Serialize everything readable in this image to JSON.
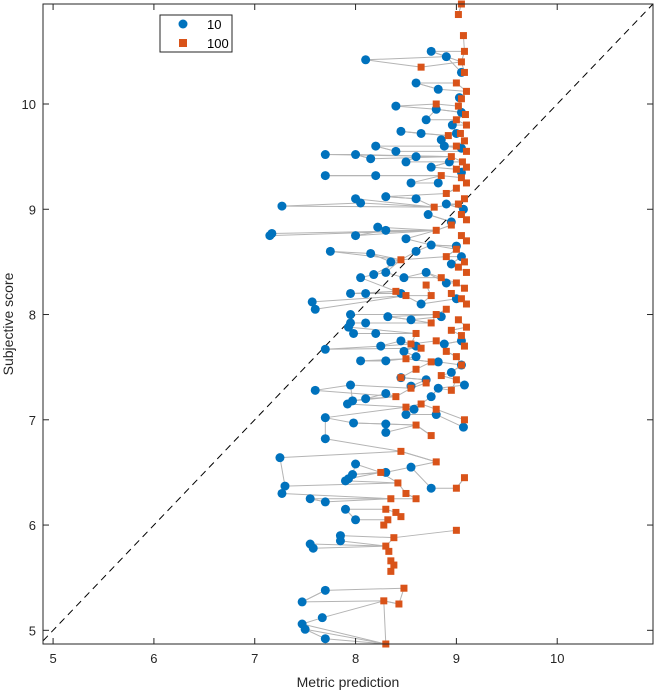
{
  "chart_data": {
    "type": "scatter",
    "xlabel": "Metric prediction",
    "ylabel": "Subjective score",
    "xlim": [
      4.9,
      10.95
    ],
    "ylim": [
      4.87,
      10.95
    ],
    "xticks": [
      5,
      6,
      7,
      8,
      9,
      10
    ],
    "yticks": [
      5,
      6,
      7,
      8,
      9,
      10
    ],
    "reference_line": "y = x (dashed)",
    "legend_position": "top-left",
    "colors": {
      "connector": "#b4b4b4",
      "axes": "#262626",
      "diagonal": "#000000"
    },
    "series": [
      {
        "name": "10",
        "marker": "circle",
        "color": "#0072BD",
        "points": [
          [
            8.1,
            10.42
          ],
          [
            8.75,
            10.5
          ],
          [
            8.9,
            10.45
          ],
          [
            9.05,
            10.3
          ],
          [
            8.6,
            10.2
          ],
          [
            8.82,
            10.14
          ],
          [
            9.03,
            10.06
          ],
          [
            8.4,
            9.98
          ],
          [
            8.8,
            9.95
          ],
          [
            9.05,
            9.92
          ],
          [
            8.7,
            9.85
          ],
          [
            8.96,
            9.8
          ],
          [
            8.45,
            9.74
          ],
          [
            8.65,
            9.72
          ],
          [
            9.0,
            9.72
          ],
          [
            8.85,
            9.66
          ],
          [
            8.2,
            9.6
          ],
          [
            8.4,
            9.55
          ],
          [
            8.6,
            9.5
          ],
          [
            8.88,
            9.6
          ],
          [
            9.05,
            9.58
          ],
          [
            7.7,
            9.52
          ],
          [
            8.0,
            9.52
          ],
          [
            8.15,
            9.48
          ],
          [
            8.5,
            9.45
          ],
          [
            8.75,
            9.4
          ],
          [
            8.93,
            9.45
          ],
          [
            9.05,
            9.35
          ],
          [
            7.7,
            9.32
          ],
          [
            8.2,
            9.32
          ],
          [
            8.55,
            9.25
          ],
          [
            8.82,
            9.25
          ],
          [
            8.0,
            9.1
          ],
          [
            8.3,
            9.12
          ],
          [
            8.6,
            9.1
          ],
          [
            8.9,
            9.05
          ],
          [
            9.07,
            9.0
          ],
          [
            7.27,
            9.03
          ],
          [
            8.05,
            9.06
          ],
          [
            8.72,
            8.95
          ],
          [
            8.95,
            8.88
          ],
          [
            7.15,
            8.75
          ],
          [
            7.17,
            8.77
          ],
          [
            8.22,
            8.83
          ],
          [
            8.3,
            8.8
          ],
          [
            8.0,
            8.75
          ],
          [
            8.5,
            8.72
          ],
          [
            8.75,
            8.66
          ],
          [
            9.0,
            8.65
          ],
          [
            8.15,
            8.58
          ],
          [
            8.6,
            8.6
          ],
          [
            7.75,
            8.6
          ],
          [
            9.05,
            8.55
          ],
          [
            8.35,
            8.5
          ],
          [
            8.95,
            8.48
          ],
          [
            8.05,
            8.35
          ],
          [
            8.18,
            8.38
          ],
          [
            8.3,
            8.4
          ],
          [
            8.48,
            8.35
          ],
          [
            8.7,
            8.4
          ],
          [
            8.9,
            8.3
          ],
          [
            7.95,
            8.2
          ],
          [
            8.1,
            8.2
          ],
          [
            8.45,
            8.2
          ],
          [
            8.65,
            8.1
          ],
          [
            9.0,
            8.15
          ],
          [
            7.57,
            8.12
          ],
          [
            7.6,
            8.05
          ],
          [
            7.95,
            8.0
          ],
          [
            8.32,
            7.98
          ],
          [
            8.55,
            7.95
          ],
          [
            8.85,
            7.98
          ],
          [
            7.95,
            7.92
          ],
          [
            8.1,
            7.92
          ],
          [
            7.93,
            7.88
          ],
          [
            7.98,
            7.82
          ],
          [
            8.2,
            7.82
          ],
          [
            8.45,
            7.75
          ],
          [
            8.6,
            7.7
          ],
          [
            8.88,
            7.72
          ],
          [
            9.05,
            7.75
          ],
          [
            7.7,
            7.67
          ],
          [
            8.25,
            7.7
          ],
          [
            8.48,
            7.65
          ],
          [
            8.05,
            7.56
          ],
          [
            8.3,
            7.56
          ],
          [
            8.6,
            7.6
          ],
          [
            8.82,
            7.55
          ],
          [
            9.05,
            7.52
          ],
          [
            8.45,
            7.4
          ],
          [
            8.7,
            7.38
          ],
          [
            8.95,
            7.45
          ],
          [
            7.95,
            7.33
          ],
          [
            8.55,
            7.32
          ],
          [
            8.82,
            7.3
          ],
          [
            9.08,
            7.33
          ],
          [
            7.6,
            7.28
          ],
          [
            8.3,
            7.25
          ],
          [
            8.75,
            7.22
          ],
          [
            7.97,
            7.18
          ],
          [
            8.1,
            7.2
          ],
          [
            7.92,
            7.15
          ],
          [
            8.58,
            7.1
          ],
          [
            8.8,
            7.05
          ],
          [
            7.7,
            7.02
          ],
          [
            8.5,
            7.05
          ],
          [
            7.98,
            6.97
          ],
          [
            8.3,
            6.96
          ],
          [
            9.07,
            6.93
          ],
          [
            7.7,
            6.82
          ],
          [
            8.3,
            6.88
          ],
          [
            7.25,
            6.64
          ],
          [
            8.0,
            6.58
          ],
          [
            8.55,
            6.55
          ],
          [
            7.97,
            6.48
          ],
          [
            7.93,
            6.44
          ],
          [
            7.9,
            6.42
          ],
          [
            8.3,
            6.5
          ],
          [
            8.75,
            6.35
          ],
          [
            7.3,
            6.37
          ],
          [
            7.27,
            6.3
          ],
          [
            7.55,
            6.25
          ],
          [
            7.7,
            6.22
          ],
          [
            7.9,
            6.15
          ],
          [
            8.0,
            6.05
          ],
          [
            7.85,
            5.9
          ],
          [
            7.85,
            5.85
          ],
          [
            7.55,
            5.82
          ],
          [
            7.58,
            5.78
          ],
          [
            7.7,
            5.38
          ],
          [
            7.47,
            5.27
          ],
          [
            7.67,
            5.12
          ],
          [
            7.47,
            5.06
          ],
          [
            7.5,
            5.01
          ],
          [
            7.7,
            4.92
          ]
        ]
      },
      {
        "name": "100",
        "marker": "square",
        "color": "#D95319",
        "points": [
          [
            9.05,
            10.95
          ],
          [
            9.02,
            10.85
          ],
          [
            9.07,
            10.65
          ],
          [
            9.08,
            10.5
          ],
          [
            9.05,
            10.4
          ],
          [
            8.65,
            10.35
          ],
          [
            9.08,
            10.3
          ],
          [
            9.0,
            10.2
          ],
          [
            9.1,
            10.12
          ],
          [
            9.05,
            10.05
          ],
          [
            8.8,
            10.0
          ],
          [
            9.02,
            9.98
          ],
          [
            9.09,
            9.9
          ],
          [
            9.0,
            9.85
          ],
          [
            9.1,
            9.8
          ],
          [
            9.04,
            9.72
          ],
          [
            8.92,
            9.7
          ],
          [
            9.08,
            9.65
          ],
          [
            9.0,
            9.6
          ],
          [
            9.1,
            9.55
          ],
          [
            8.95,
            9.5
          ],
          [
            9.06,
            9.45
          ],
          [
            9.1,
            9.4
          ],
          [
            9.0,
            9.38
          ],
          [
            8.85,
            9.32
          ],
          [
            9.05,
            9.3
          ],
          [
            9.1,
            9.25
          ],
          [
            9.0,
            9.2
          ],
          [
            8.9,
            9.15
          ],
          [
            9.08,
            9.1
          ],
          [
            9.02,
            9.05
          ],
          [
            8.78,
            9.02
          ],
          [
            9.05,
            8.95
          ],
          [
            9.1,
            8.9
          ],
          [
            8.95,
            8.85
          ],
          [
            8.8,
            8.8
          ],
          [
            9.05,
            8.75
          ],
          [
            9.1,
            8.7
          ],
          [
            9.0,
            8.62
          ],
          [
            8.9,
            8.55
          ],
          [
            9.08,
            8.5
          ],
          [
            8.45,
            8.52
          ],
          [
            9.02,
            8.45
          ],
          [
            9.1,
            8.4
          ],
          [
            8.85,
            8.35
          ],
          [
            9.0,
            8.3
          ],
          [
            8.7,
            8.28
          ],
          [
            9.08,
            8.25
          ],
          [
            8.4,
            8.22
          ],
          [
            8.95,
            8.2
          ],
          [
            8.75,
            8.18
          ],
          [
            9.05,
            8.15
          ],
          [
            8.5,
            8.18
          ],
          [
            9.1,
            8.1
          ],
          [
            8.9,
            8.05
          ],
          [
            8.8,
            8.0
          ],
          [
            9.02,
            7.95
          ],
          [
            8.75,
            7.92
          ],
          [
            9.1,
            7.88
          ],
          [
            8.95,
            7.85
          ],
          [
            8.6,
            7.82
          ],
          [
            9.05,
            7.8
          ],
          [
            8.8,
            7.75
          ],
          [
            8.55,
            7.72
          ],
          [
            9.08,
            7.7
          ],
          [
            8.65,
            7.68
          ],
          [
            8.9,
            7.65
          ],
          [
            9.0,
            7.6
          ],
          [
            8.5,
            7.58
          ],
          [
            8.75,
            7.55
          ],
          [
            9.05,
            7.52
          ],
          [
            8.6,
            7.48
          ],
          [
            8.85,
            7.42
          ],
          [
            8.45,
            7.4
          ],
          [
            9.0,
            7.38
          ],
          [
            8.7,
            7.35
          ],
          [
            8.55,
            7.3
          ],
          [
            8.95,
            7.28
          ],
          [
            8.4,
            7.22
          ],
          [
            8.65,
            7.15
          ],
          [
            8.8,
            7.1
          ],
          [
            8.5,
            7.12
          ],
          [
            9.08,
            7.0
          ],
          [
            8.6,
            6.95
          ],
          [
            8.75,
            6.85
          ],
          [
            8.45,
            6.7
          ],
          [
            8.8,
            6.6
          ],
          [
            9.08,
            6.45
          ],
          [
            8.25,
            6.5
          ],
          [
            9.0,
            6.35
          ],
          [
            8.42,
            6.4
          ],
          [
            8.5,
            6.3
          ],
          [
            8.6,
            6.25
          ],
          [
            8.35,
            6.25
          ],
          [
            8.3,
            6.15
          ],
          [
            8.4,
            6.12
          ],
          [
            8.45,
            6.08
          ],
          [
            8.32,
            6.05
          ],
          [
            8.28,
            6.0
          ],
          [
            9.0,
            5.95
          ],
          [
            8.38,
            5.88
          ],
          [
            8.3,
            5.8
          ],
          [
            8.33,
            5.75
          ],
          [
            8.35,
            5.66
          ],
          [
            8.38,
            5.62
          ],
          [
            8.35,
            5.56
          ],
          [
            8.48,
            5.4
          ],
          [
            8.28,
            5.28
          ],
          [
            8.43,
            5.25
          ],
          [
            8.3,
            4.87
          ]
        ]
      }
    ]
  }
}
